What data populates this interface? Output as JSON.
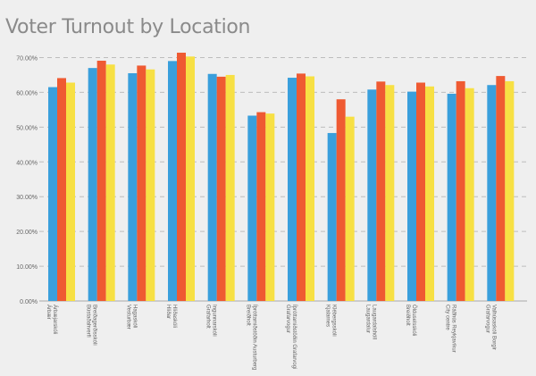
{
  "title": "Voter Turnout by Location",
  "colors": {
    "background": "#efefef",
    "grid": "#bdbdbd",
    "text": "#666666",
    "series": [
      "#3a9fdc",
      "#ef5a32",
      "#f7e044"
    ]
  },
  "chart_data": {
    "type": "bar",
    "title": "Voter Turnout by Location",
    "xlabel": "",
    "ylabel": "",
    "ylim": [
      0,
      75
    ],
    "y_ticks": [
      0,
      10,
      20,
      30,
      40,
      50,
      60,
      70
    ],
    "y_tick_labels": [
      "0.00%",
      "10.00%",
      "20.00%",
      "30.00%",
      "40.00%",
      "50.00%",
      "60.00%",
      "70.00%"
    ],
    "grid": true,
    "legend": "none",
    "categories": [
      [
        "Árbæjarskóli",
        "Árbær"
      ],
      [
        "Breiðagerðisskóli",
        "Bústaðahverfi"
      ],
      [
        "Hagaskóli",
        "Vesturbær"
      ],
      [
        "Hlíðaskóli",
        "Hlíðar"
      ],
      [
        "Ingunnarskóli",
        "Grafarholt"
      ],
      [
        "Íþróttamiðstöðin Austurberg",
        "Breiðholt"
      ],
      [
        "Íþróttamiðstöðin Grafarvogi",
        "Grafarvogur"
      ],
      [
        "Klébergsskóli",
        "Kjalarnes"
      ],
      [
        "Laugardalshöll",
        "Laugardalur"
      ],
      [
        "Ölduselsskóli",
        "Breiðholt"
      ],
      [
        "Ráðhús Reykjavíkur",
        "City centre"
      ],
      [
        "Valhúsaskóli Borgir",
        "Grafarvogur"
      ]
    ],
    "series": [
      {
        "values": [
          61.5,
          67.0,
          65.5,
          69.0,
          65.3,
          53.3,
          64.2,
          48.3,
          60.8,
          60.2,
          59.6,
          62.1
        ]
      },
      {
        "values": [
          64.1,
          69.1,
          67.7,
          71.4,
          64.5,
          54.3,
          65.4,
          58.0,
          63.1,
          62.8,
          63.2,
          64.7
        ]
      },
      {
        "values": [
          62.8,
          68.0,
          66.6,
          70.3,
          65.0,
          53.9,
          64.6,
          53.0,
          62.1,
          61.7,
          61.2,
          63.2
        ]
      }
    ]
  }
}
